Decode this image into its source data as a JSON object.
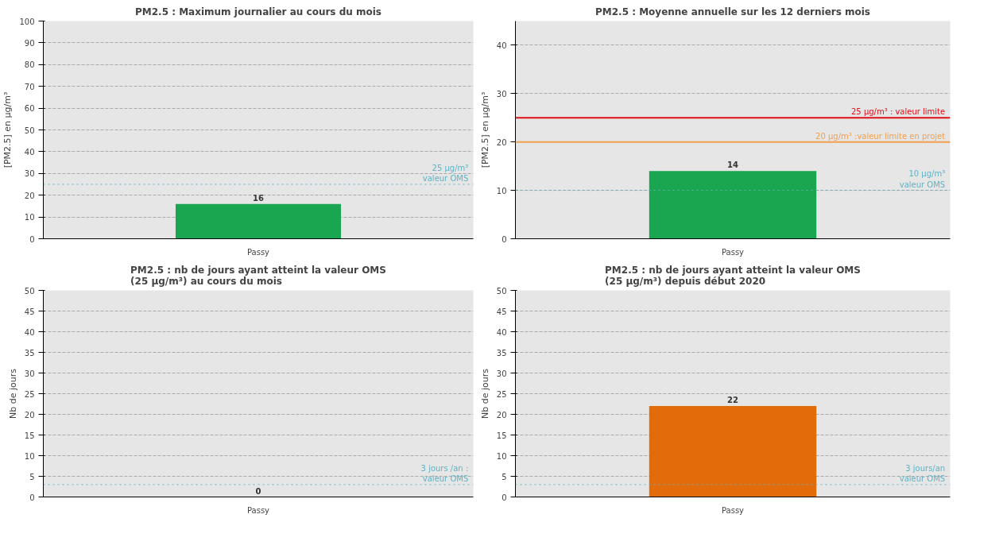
{
  "chart_data": [
    {
      "type": "bar",
      "title": "PM2.5 : Maximum journalier au cours du mois",
      "ylabel": "[PM2.5] en µg/m³",
      "categories": [
        "Passy"
      ],
      "values": [
        16
      ],
      "color": "#1aa550",
      "ylim": [
        0,
        100
      ],
      "yticks": [
        0,
        10,
        20,
        30,
        40,
        50,
        60,
        70,
        80,
        90,
        100
      ],
      "grid": "y",
      "data_labels": true,
      "ref_lines": [
        {
          "axis": "y",
          "value": 25,
          "label": "25 µg/m³\nvaleur OMS",
          "color": "#5fb3c4",
          "line_style": "dotted"
        }
      ]
    },
    {
      "type": "bar",
      "title": "PM2.5 : Moyenne annuelle sur les 12 derniers mois",
      "ylabel": "[PM2.5] en µg/m³",
      "categories": [
        "Passy"
      ],
      "values": [
        14
      ],
      "color": "#1aa550",
      "ylim": [
        0,
        45
      ],
      "yticks": [
        0,
        10,
        20,
        30,
        40
      ],
      "grid": "y",
      "data_labels": true,
      "ref_lines": [
        {
          "axis": "y",
          "value": 25,
          "label": "25 µg/m³ : valeur limite",
          "color": "#e0101a",
          "line_style": "solid"
        },
        {
          "axis": "y",
          "value": 20,
          "label": "20 µg/m³ :valeur limite en projet",
          "color": "#f0a050",
          "line_style": "solid"
        },
        {
          "axis": "y",
          "value": 10,
          "label": "10 µg/m³\nvaleur OMS",
          "color": "#5fb3c4",
          "line_style": "dotted"
        }
      ]
    },
    {
      "type": "bar",
      "title": "PM2.5 : nb de jours ayant atteint la valeur OMS\n(25 µg/m³) au cours du mois",
      "ylabel": "Nb de jours",
      "categories": [
        "Passy"
      ],
      "values": [
        0
      ],
      "color": "#1aa550",
      "ylim": [
        0,
        50
      ],
      "yticks": [
        0,
        5,
        10,
        15,
        20,
        25,
        30,
        35,
        40,
        45,
        50
      ],
      "grid": "y",
      "data_labels": true,
      "ref_lines": [
        {
          "axis": "y",
          "value": 3,
          "label": "3 jours /an :\nvaleur OMS",
          "color": "#5fb3c4",
          "line_style": "dotted"
        }
      ]
    },
    {
      "type": "bar",
      "title": "PM2.5 : nb de jours ayant atteint la valeur OMS\n(25 µg/m³) depuis début 2020",
      "ylabel": "Nb de jours",
      "categories": [
        "Passy"
      ],
      "values": [
        22
      ],
      "color": "#e36c0a",
      "ylim": [
        0,
        50
      ],
      "yticks": [
        0,
        5,
        10,
        15,
        20,
        25,
        30,
        35,
        40,
        45,
        50
      ],
      "grid": "y",
      "data_labels": true,
      "ref_lines": [
        {
          "axis": "y",
          "value": 3,
          "label": "3 jours/an\nvaleur OMS",
          "color": "#5fb3c4",
          "line_style": "dotted"
        }
      ]
    }
  ]
}
